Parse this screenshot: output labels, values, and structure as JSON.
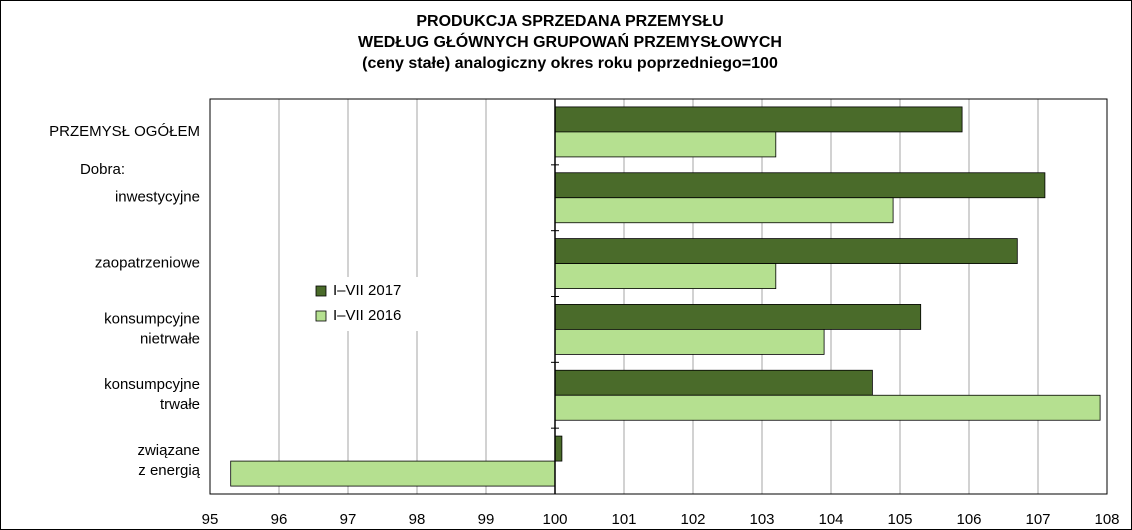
{
  "chart_data": {
    "type": "hbar",
    "title": [
      "PRODUKCJA SPRZEDANA PRZEMYSŁU",
      "WEDŁUG GŁÓWNYCH GRUPOWAŃ PRZEMYSŁOWYCH",
      "(ceny stałe)  analogiczny okres roku poprzedniego=100"
    ],
    "group_label": "Dobra:",
    "categories": [
      [
        "PRZEMYSŁ OGÓŁEM"
      ],
      [
        "inwestycyjne"
      ],
      [
        "zaopatrzeniowe"
      ],
      [
        "konsumpcyjne",
        "nietrwałe"
      ],
      [
        "konsumpcyjne",
        "trwałe"
      ],
      [
        "związane",
        "z energią"
      ]
    ],
    "series": [
      {
        "name": "I–VII 2017",
        "color": "#4a6b2a",
        "values": [
          105.9,
          107.1,
          106.7,
          105.3,
          104.6,
          100.1
        ]
      },
      {
        "name": "I–VII 2016",
        "color": "#b5e090",
        "values": [
          103.2,
          104.9,
          103.2,
          103.9,
          107.9,
          95.3
        ]
      }
    ],
    "xlim": [
      95,
      108
    ],
    "xticks": [
      95,
      96,
      97,
      98,
      99,
      100,
      101,
      102,
      103,
      104,
      105,
      106,
      107,
      108
    ],
    "base": 100,
    "grid": true
  }
}
